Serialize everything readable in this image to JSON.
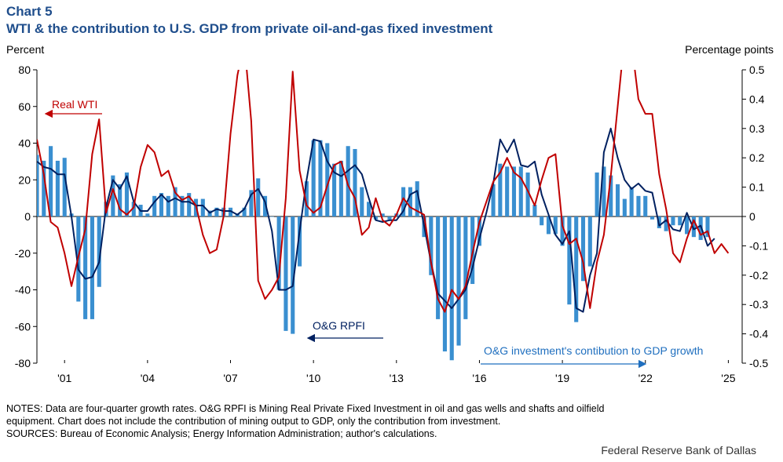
{
  "chart_number": "Chart 5",
  "title": "WTI & the contribution to U.S. GDP from private oil-and-gas fixed investment",
  "left_axis_label": "Percent",
  "right_axis_label": "Percentage points",
  "notes": [
    "NOTES: Data  are four-quarter growth rates. O&G RPFI is Mining  Real Private Fixed Investment in oil and gas wells and shafts and oilfield",
    "equipment. Chart  does not include the contribution of mining output to GDP, only the contribution from investment.",
    "SOURCES: Bureau of Economic Analysis; Energy Information Administration; author's calculations."
  ],
  "source_credit": "Federal Reserve Bank of Dallas",
  "colors": {
    "wti": "#c00000",
    "rpfi": "#002060",
    "bars": "#3a8fd0",
    "title": "#1f4e8c",
    "arrow_wti": "#c00000",
    "arrow_rpfi": "#002060",
    "arrow_bars": "#1f6fbf"
  },
  "chart_data": {
    "type": "bar+line",
    "x_start": 2000.0,
    "x_step": 0.25,
    "x_tick_labels": [
      "'01",
      "'04",
      "'07",
      "'10",
      "'13",
      "'16",
      "'19",
      "'22",
      "'25"
    ],
    "x_tick_years": [
      2001,
      2004,
      2007,
      2010,
      2013,
      2016,
      2019,
      2022,
      2025
    ],
    "left_axis": {
      "label": "Percent",
      "min": -80,
      "max": 80,
      "ticks": [
        -80,
        -60,
        -40,
        -20,
        0,
        20,
        40,
        60,
        80
      ]
    },
    "right_axis": {
      "label": "Percentage points",
      "min": -0.5,
      "max": 0.5,
      "ticks": [
        "-0.5",
        "-0.4",
        "-0.3",
        "-0.2",
        "-0.1",
        "0",
        "0.1",
        "0.2",
        "0.3",
        "0.4",
        "0.5"
      ]
    },
    "annotations": [
      {
        "text": "Real WTI",
        "series": "Real WTI"
      },
      {
        "text": "O&G RPFI",
        "series": "O&G RPFI"
      },
      {
        "text": "O&G investment's  contibution to GDP growth",
        "series": "O&G investment's contribution to GDP growth"
      }
    ],
    "series": [
      {
        "name": "O&G investment's contribution to GDP growth",
        "axis": "right",
        "type": "bar",
        "values": [
          0.21,
          0.19,
          0.24,
          0.19,
          0.2,
          0.01,
          -0.29,
          -0.35,
          -0.35,
          -0.24,
          0.05,
          0.14,
          0.11,
          0.15,
          0.05,
          0.04,
          0.01,
          0.07,
          0.08,
          0.07,
          0.1,
          0.07,
          0.08,
          0.06,
          0.06,
          0.02,
          0.03,
          0.03,
          0.03,
          0.01,
          0.03,
          0.09,
          0.13,
          0.07,
          0.0,
          -0.25,
          -0.39,
          -0.4,
          -0.17,
          0.12,
          0.26,
          0.26,
          0.25,
          0.18,
          0.19,
          0.24,
          0.23,
          0.1,
          0.05,
          -0.01,
          0.01,
          -0.01,
          0.01,
          0.1,
          0.1,
          0.12,
          -0.07,
          -0.2,
          -0.35,
          -0.46,
          -0.49,
          -0.44,
          -0.35,
          -0.23,
          -0.1,
          0.0,
          0.11,
          0.18,
          0.17,
          0.17,
          0.17,
          0.15,
          0.04,
          -0.03,
          -0.06,
          -0.06,
          -0.1,
          -0.3,
          -0.36,
          -0.22,
          -0.17,
          0.15,
          0.17,
          0.14,
          0.11,
          0.06,
          0.1,
          0.07,
          0.07,
          -0.01,
          -0.04,
          -0.05,
          -0.03,
          -0.03,
          -0.06,
          -0.07,
          -0.08,
          -0.07
        ]
      },
      {
        "name": "O&G RPFI",
        "axis": "left",
        "type": "line",
        "values": [
          30,
          27,
          26,
          23,
          23,
          0,
          -29,
          -34,
          -33,
          -25,
          5,
          20,
          15,
          22,
          8,
          3,
          3,
          8,
          12,
          8,
          10,
          8,
          8,
          6,
          6,
          2,
          4,
          3,
          3,
          1,
          4,
          12,
          15,
          8,
          -8,
          -40,
          -40,
          -38,
          -8,
          20,
          42,
          41,
          30,
          24,
          22,
          25,
          28,
          23,
          10,
          -2,
          -3,
          -2,
          -2,
          3,
          12,
          14,
          -5,
          -25,
          -42,
          -46,
          -50,
          -45,
          -40,
          -28,
          -12,
          2,
          18,
          42,
          35,
          42,
          28,
          27,
          30,
          12,
          1,
          -10,
          -15,
          -8,
          -50,
          -52,
          -32,
          -20,
          35,
          48,
          32,
          20,
          15,
          18,
          14,
          13,
          -5,
          -2,
          -7,
          -8,
          2,
          -7,
          -5,
          -16,
          -12
        ]
      },
      {
        "name": "Real WTI",
        "axis": "left",
        "type": "line",
        "values": [
          42,
          23,
          -3,
          -6,
          -20,
          -38,
          -22,
          -7,
          34,
          53,
          2,
          15,
          4,
          1,
          5,
          27,
          39,
          35,
          22,
          25,
          13,
          9,
          11,
          6,
          -10,
          -20,
          -18,
          0,
          45,
          77,
          95,
          52,
          -35,
          -45,
          -40,
          -33,
          10,
          79,
          25,
          6,
          2,
          5,
          17,
          28,
          30,
          17,
          10,
          -10,
          -6,
          10,
          -2,
          -5,
          1,
          10,
          5,
          3,
          1,
          -25,
          -45,
          -52,
          -40,
          -45,
          -38,
          -20,
          -3,
          8,
          19,
          24,
          32,
          24,
          21,
          14,
          6,
          20,
          32,
          34,
          -5,
          -15,
          -12,
          -25,
          -50,
          -25,
          -10,
          22,
          60,
          98,
          95,
          64,
          56,
          56,
          23,
          4,
          -20,
          -25,
          -12,
          -2,
          -10,
          -8,
          -20,
          -15,
          -20
        ]
      }
    ]
  }
}
